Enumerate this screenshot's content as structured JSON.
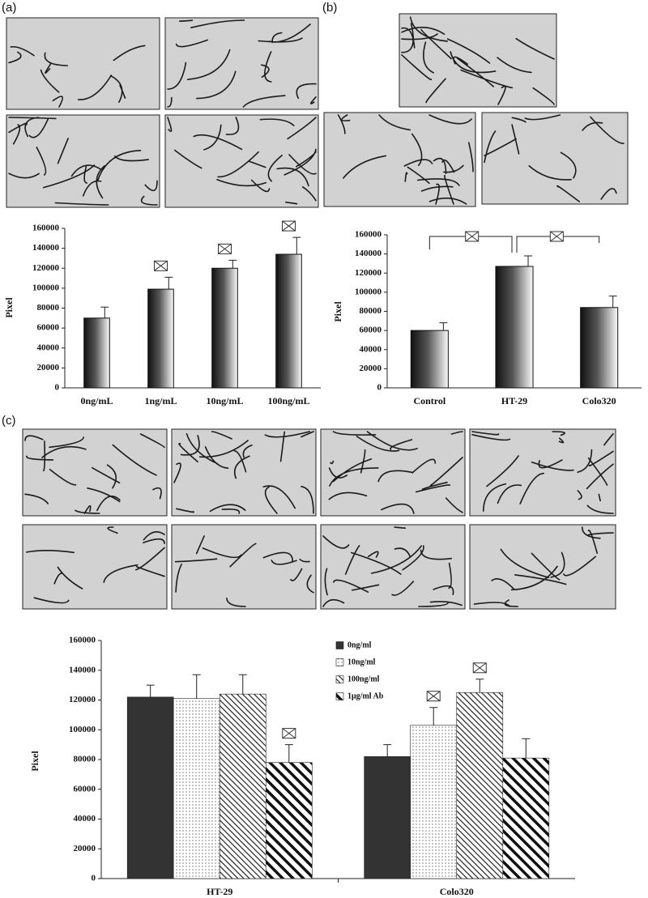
{
  "chart_data": [
    {
      "type": "bar",
      "panel": "(a)",
      "y_label": "Pixel",
      "fill": "gradient",
      "categories": [
        "0ng/mL",
        "1ng/mL",
        "10ng/mL",
        "100ng/mL"
      ],
      "values": [
        70000,
        99000,
        120000,
        134000
      ],
      "errors": [
        11000,
        12000,
        8000,
        17000
      ],
      "ylim": [
        0,
        160000
      ],
      "yticks": [
        0,
        20000,
        40000,
        60000,
        80000,
        100000,
        120000,
        140000,
        160000
      ]
    },
    {
      "type": "bar",
      "panel": "(b)",
      "y_label": "Pixel",
      "fill": "gradient",
      "categories": [
        "Control",
        "HT-29",
        "Colo320"
      ],
      "values": [
        60000,
        127000,
        84000
      ],
      "errors": [
        8000,
        11000,
        12000
      ],
      "ylim": [
        0,
        160000
      ],
      "yticks": [
        0,
        20000,
        40000,
        60000,
        80000,
        100000,
        120000,
        140000,
        160000
      ]
    },
    {
      "type": "grouped-bar",
      "panel": "(c)",
      "y_label": "Pixel",
      "categories": [
        "HT-29",
        "Colo320"
      ],
      "series": [
        {
          "name": "0ng/ml",
          "pattern": "solid",
          "color": "#333333",
          "values": [
            122000,
            82000
          ],
          "errors": [
            8000,
            8000
          ]
        },
        {
          "name": "10ng/ml",
          "pattern": "dots",
          "color": "#333333",
          "values": [
            121000,
            103000
          ],
          "errors": [
            16000,
            12000
          ]
        },
        {
          "name": "100ng/ml",
          "pattern": "hatch",
          "color": "#333333",
          "values": [
            124000,
            125000
          ],
          "errors": [
            13000,
            9000
          ]
        },
        {
          "name": "1μg/ml Ab",
          "pattern": "thick-hatch",
          "color": "#333333",
          "values": [
            78000,
            81000
          ],
          "errors": [
            12000,
            13000
          ]
        }
      ],
      "ylim": [
        0,
        160000
      ],
      "yticks": [
        0,
        20000,
        40000,
        60000,
        80000,
        100000,
        120000,
        140000,
        160000
      ]
    }
  ]
}
